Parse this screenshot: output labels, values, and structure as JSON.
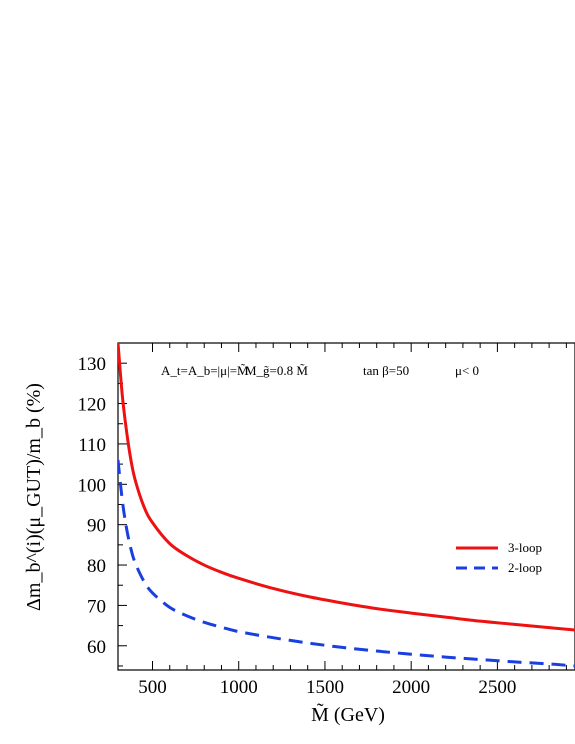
{
  "chart_data": {
    "type": "line",
    "xlabel": "M̃ (GeV)",
    "ylabel": "Δm_b^(i)(μ_GUT)/m_b (%)",
    "xlim": [
      300,
      2950
    ],
    "ylim": [
      54,
      135
    ],
    "xticks": [
      500,
      1000,
      1500,
      2000,
      2500
    ],
    "yticks": [
      60,
      70,
      80,
      90,
      100,
      110,
      120,
      130
    ],
    "annotations": [
      "A_t=A_b=|μ|=M̃",
      "M_g̃=0.8 M̃",
      "tan β=50",
      "μ< 0"
    ],
    "legend_position": "right",
    "series": [
      {
        "name": "3-loop",
        "color": "#ee1111",
        "style": "solid",
        "x": [
          300,
          325,
          350,
          375,
          400,
          450,
          500,
          600,
          700,
          800,
          900,
          1000,
          1200,
          1400,
          1600,
          1800,
          2000,
          2200,
          2400,
          2600,
          2800,
          2950
        ],
        "y": [
          135,
          122,
          113,
          106,
          101,
          94.5,
          90.5,
          85.3,
          82.3,
          80,
          78.2,
          76.7,
          74.2,
          72.2,
          70.6,
          69.2,
          68.1,
          67.1,
          66.1,
          65.3,
          64.5,
          63.9
        ]
      },
      {
        "name": "2-loop",
        "color": "#1a3fe0",
        "style": "dashed",
        "x": [
          300,
          325,
          350,
          375,
          400,
          450,
          500,
          600,
          700,
          800,
          900,
          1000,
          1200,
          1400,
          1600,
          1800,
          2000,
          2200,
          2400,
          2600,
          2800,
          2950
        ],
        "y": [
          106,
          96,
          89,
          84,
          80.5,
          76,
          73.1,
          69.5,
          67.4,
          65.8,
          64.6,
          63.5,
          62,
          60.7,
          59.6,
          58.7,
          57.9,
          57.2,
          56.6,
          56,
          55.5,
          55
        ]
      }
    ]
  }
}
